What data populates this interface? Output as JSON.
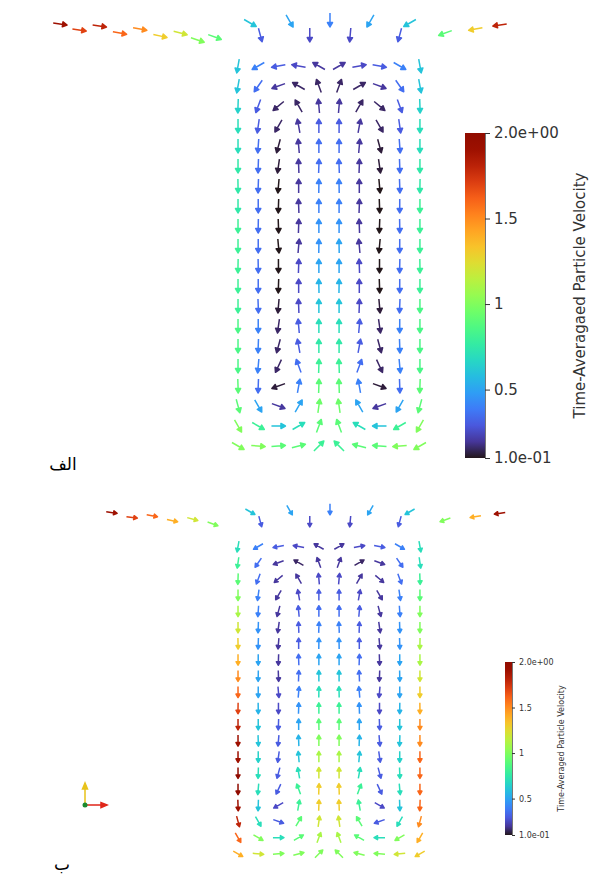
{
  "chart_data": [
    {
      "type": "quiver",
      "label": "الف",
      "tick_labels": false,
      "xlim": [
        -2.8,
        1.9
      ],
      "ylim": [
        0,
        4.6
      ],
      "x": [
        -0.9,
        -0.7,
        -0.5,
        -0.3,
        -0.1,
        0.1,
        0.3,
        0.5,
        0.7,
        0.9
      ],
      "y": [
        4,
        3.8,
        3.6,
        3.4,
        3.2,
        3,
        2.8,
        2.6,
        2.4,
        2.2,
        2,
        1.8,
        1.6,
        1.4,
        1.2,
        1,
        0.8,
        0.6,
        0.4,
        0.2
      ],
      "angle": [
        [
          260,
          210,
          190,
          170,
          150,
          30,
          10,
          350,
          330,
          280
        ],
        [
          260,
          235,
          200,
          150,
          110,
          70,
          30,
          340,
          305,
          280
        ],
        [
          268,
          250,
          220,
          120,
          95,
          85,
          60,
          320,
          290,
          272
        ],
        [
          270,
          262,
          240,
          100,
          90,
          90,
          80,
          300,
          278,
          270
        ],
        [
          270,
          266,
          255,
          95,
          90,
          90,
          85,
          285,
          274,
          270
        ],
        [
          270,
          268,
          262,
          92,
          88,
          92,
          88,
          278,
          272,
          270
        ],
        [
          271,
          268,
          265,
          90,
          89,
          91,
          90,
          275,
          272,
          269
        ],
        [
          270,
          270,
          268,
          92,
          90,
          90,
          88,
          272,
          270,
          270
        ],
        [
          270,
          269,
          272,
          88,
          90,
          90,
          92,
          268,
          271,
          270
        ],
        [
          270,
          270,
          275,
          85,
          89,
          91,
          95,
          265,
          270,
          270
        ],
        [
          269,
          271,
          270,
          88,
          90,
          90,
          92,
          270,
          269,
          271
        ],
        [
          270,
          270,
          268,
          90,
          91,
          89,
          90,
          272,
          270,
          270
        ],
        [
          270,
          272,
          265,
          92,
          90,
          90,
          88,
          275,
          268,
          270
        ],
        [
          270,
          270,
          262,
          95,
          90,
          90,
          85,
          278,
          270,
          270
        ],
        [
          270,
          268,
          255,
          100,
          90,
          90,
          80,
          285,
          272,
          270
        ],
        [
          270,
          265,
          245,
          110,
          88,
          92,
          70,
          295,
          275,
          270
        ],
        [
          272,
          268,
          200,
          80,
          88,
          92,
          100,
          340,
          272,
          268
        ],
        [
          285,
          300,
          340,
          60,
          82,
          98,
          120,
          200,
          240,
          255
        ],
        [
          300,
          330,
          0,
          30,
          70,
          110,
          150,
          180,
          210,
          240
        ],
        [
          330,
          355,
          5,
          15,
          45,
          135,
          165,
          175,
          185,
          210
        ]
      ],
      "speed": [
        [
          0.6,
          0.4,
          0.3,
          0.25,
          0.2,
          0.2,
          0.25,
          0.3,
          0.4,
          0.6
        ],
        [
          0.6,
          0.35,
          0.2,
          0.15,
          0.15,
          0.15,
          0.15,
          0.2,
          0.35,
          0.6
        ],
        [
          0.65,
          0.3,
          0.15,
          0.15,
          0.2,
          0.2,
          0.15,
          0.15,
          0.3,
          0.65
        ],
        [
          0.7,
          0.3,
          0.15,
          0.2,
          0.3,
          0.3,
          0.2,
          0.15,
          0.3,
          0.7
        ],
        [
          0.7,
          0.35,
          0.12,
          0.2,
          0.35,
          0.35,
          0.2,
          0.12,
          0.35,
          0.7
        ],
        [
          0.75,
          0.35,
          0.12,
          0.2,
          0.35,
          0.35,
          0.2,
          0.12,
          0.35,
          0.75
        ],
        [
          0.75,
          0.35,
          0.1,
          0.2,
          0.4,
          0.4,
          0.2,
          0.1,
          0.35,
          0.75
        ],
        [
          0.75,
          0.35,
          0.1,
          0.2,
          0.4,
          0.4,
          0.2,
          0.1,
          0.35,
          0.8
        ],
        [
          0.8,
          0.35,
          0.1,
          0.2,
          0.45,
          0.45,
          0.2,
          0.1,
          0.35,
          0.8
        ],
        [
          0.8,
          0.35,
          0.1,
          0.2,
          0.45,
          0.5,
          0.2,
          0.1,
          0.35,
          0.8
        ],
        [
          0.8,
          0.35,
          0.1,
          0.25,
          0.5,
          0.5,
          0.25,
          0.1,
          0.35,
          0.8
        ],
        [
          0.8,
          0.35,
          0.1,
          0.25,
          0.55,
          0.55,
          0.25,
          0.1,
          0.35,
          0.8
        ],
        [
          0.8,
          0.35,
          0.12,
          0.25,
          0.6,
          0.6,
          0.25,
          0.12,
          0.35,
          0.85
        ],
        [
          0.85,
          0.4,
          0.15,
          0.3,
          0.7,
          0.7,
          0.3,
          0.15,
          0.4,
          0.85
        ],
        [
          0.85,
          0.4,
          0.15,
          0.3,
          0.75,
          0.75,
          0.3,
          0.15,
          0.4,
          0.85
        ],
        [
          0.85,
          0.4,
          0.15,
          0.35,
          0.8,
          0.8,
          0.35,
          0.15,
          0.4,
          0.85
        ],
        [
          0.9,
          0.35,
          0.12,
          0.4,
          0.9,
          0.9,
          0.4,
          0.12,
          0.35,
          0.9
        ],
        [
          0.9,
          0.5,
          0.2,
          0.5,
          0.95,
          0.95,
          0.5,
          0.2,
          0.5,
          0.9
        ],
        [
          1,
          0.8,
          0.6,
          0.7,
          0.9,
          0.9,
          0.7,
          0.6,
          0.8,
          1
        ],
        [
          1,
          1,
          0.9,
          0.9,
          0.8,
          0.8,
          0.9,
          0.9,
          1,
          1
        ]
      ],
      "tray": {
        "x": [
          -2.66,
          -2.47,
          -2.27,
          -2.07,
          -1.87,
          -1.67,
          -1.47,
          -1.3,
          -1.13,
          -0.78,
          -0.39,
          0.01,
          0.41,
          0.8,
          -0.68,
          -0.19,
          0.21,
          0.7,
          1.15,
          1.45,
          1.69
        ],
        "y": [
          4.42,
          4.36,
          4.4,
          4.33,
          4.37,
          4.3,
          4.33,
          4.26,
          4.29,
          4.43,
          4.45,
          4.46,
          4.45,
          4.43,
          4.31,
          4.31,
          4.31,
          4.31,
          4.33,
          4.37,
          4.41
        ],
        "angle": [
          352,
          352,
          352,
          350,
          350,
          348,
          345,
          342,
          340,
          330,
          300,
          270,
          240,
          210,
          285,
          270,
          265,
          255,
          200,
          190,
          188
        ],
        "speed": [
          1.9,
          1.7,
          1.8,
          1.6,
          1.5,
          1.3,
          1.2,
          1.0,
          0.9,
          0.6,
          0.5,
          0.4,
          0.5,
          0.6,
          0.3,
          0.25,
          0.25,
          0.3,
          0.9,
          1.3,
          1.8
        ]
      },
      "colorbar": {
        "title": "Time-Averagaed Particle Velocity",
        "range": [
          0.1,
          2
        ],
        "ticks": [
          {
            "value": 2,
            "label": "2.0e+00"
          },
          1.5,
          1,
          0.5,
          {
            "value": 0.1,
            "label": "1.0e-01"
          }
        ]
      }
    },
    {
      "type": "quiver",
      "label": "ب",
      "tick_labels": false,
      "xlim": [
        -2.8,
        1.9
      ],
      "ylim": [
        0,
        4.6
      ],
      "x": [
        -0.9,
        -0.7,
        -0.5,
        -0.3,
        -0.1,
        0.1,
        0.3,
        0.5,
        0.7,
        0.9
      ],
      "y": [
        4,
        3.8,
        3.6,
        3.4,
        3.2,
        3,
        2.8,
        2.6,
        2.4,
        2.2,
        2,
        1.8,
        1.6,
        1.4,
        1.2,
        1,
        0.8,
        0.6,
        0.4,
        0.2
      ],
      "angle": [
        [
          260,
          210,
          190,
          170,
          150,
          30,
          10,
          350,
          330,
          280
        ],
        [
          262,
          235,
          200,
          150,
          110,
          70,
          30,
          340,
          305,
          278
        ],
        [
          268,
          250,
          220,
          120,
          95,
          85,
          60,
          320,
          290,
          272
        ],
        [
          270,
          262,
          240,
          100,
          90,
          90,
          80,
          300,
          278,
          270
        ],
        [
          270,
          266,
          255,
          95,
          90,
          90,
          85,
          285,
          274,
          270
        ],
        [
          270,
          268,
          262,
          92,
          88,
          92,
          88,
          278,
          272,
          270
        ],
        [
          271,
          268,
          265,
          90,
          89,
          91,
          90,
          275,
          272,
          269
        ],
        [
          270,
          270,
          268,
          92,
          90,
          90,
          88,
          272,
          270,
          270
        ],
        [
          270,
          269,
          272,
          88,
          90,
          90,
          92,
          268,
          271,
          270
        ],
        [
          270,
          270,
          275,
          85,
          89,
          91,
          95,
          265,
          270,
          270
        ],
        [
          269,
          271,
          270,
          88,
          90,
          90,
          92,
          270,
          269,
          271
        ],
        [
          270,
          270,
          268,
          90,
          91,
          89,
          90,
          272,
          270,
          270
        ],
        [
          270,
          272,
          265,
          92,
          90,
          90,
          88,
          275,
          268,
          270
        ],
        [
          270,
          270,
          262,
          95,
          90,
          90,
          85,
          278,
          270,
          270
        ],
        [
          270,
          268,
          255,
          100,
          90,
          90,
          80,
          285,
          272,
          270
        ],
        [
          270,
          265,
          245,
          110,
          88,
          92,
          70,
          295,
          275,
          270
        ],
        [
          272,
          268,
          210,
          80,
          88,
          92,
          100,
          330,
          272,
          268
        ],
        [
          285,
          300,
          340,
          60,
          82,
          98,
          120,
          200,
          240,
          255
        ],
        [
          300,
          330,
          0,
          30,
          70,
          110,
          150,
          180,
          210,
          240
        ],
        [
          330,
          355,
          5,
          15,
          45,
          135,
          165,
          175,
          185,
          210
        ]
      ],
      "speed": [
        [
          0.7,
          0.4,
          0.3,
          0.25,
          0.2,
          0.2,
          0.25,
          0.3,
          0.4,
          0.7
        ],
        [
          0.8,
          0.35,
          0.2,
          0.15,
          0.2,
          0.2,
          0.15,
          0.2,
          0.35,
          0.7
        ],
        [
          0.9,
          0.35,
          0.2,
          0.2,
          0.25,
          0.25,
          0.2,
          0.2,
          0.35,
          0.8
        ],
        [
          1,
          0.4,
          0.2,
          0.25,
          0.3,
          0.3,
          0.25,
          0.2,
          0.4,
          0.9
        ],
        [
          1.1,
          0.4,
          0.2,
          0.3,
          0.35,
          0.35,
          0.3,
          0.2,
          0.4,
          1
        ],
        [
          1.2,
          0.45,
          0.2,
          0.3,
          0.4,
          0.4,
          0.3,
          0.2,
          0.45,
          1
        ],
        [
          1.3,
          0.45,
          0.2,
          0.3,
          0.45,
          0.45,
          0.3,
          0.2,
          0.45,
          1.1
        ],
        [
          1.4,
          0.5,
          0.2,
          0.35,
          0.5,
          0.5,
          0.35,
          0.2,
          0.5,
          1.1
        ],
        [
          1.5,
          0.5,
          0.2,
          0.35,
          0.6,
          0.6,
          0.35,
          0.2,
          0.5,
          1.2
        ],
        [
          1.6,
          0.5,
          0.25,
          0.4,
          0.7,
          0.7,
          0.4,
          0.25,
          0.5,
          1.3
        ],
        [
          1.7,
          0.55,
          0.25,
          0.45,
          0.8,
          0.8,
          0.45,
          0.25,
          0.55,
          1.4
        ],
        [
          1.8,
          0.6,
          0.3,
          0.5,
          0.9,
          0.9,
          0.5,
          0.3,
          0.6,
          1.5
        ],
        [
          1.9,
          0.6,
          0.3,
          0.55,
          1,
          1,
          0.55,
          0.3,
          0.6,
          1.5
        ],
        [
          1.9,
          0.65,
          0.3,
          0.6,
          1.1,
          1.1,
          0.6,
          0.3,
          0.65,
          1.6
        ],
        [
          2,
          0.7,
          0.3,
          0.7,
          1.2,
          1.2,
          0.7,
          0.3,
          0.7,
          1.6
        ],
        [
          2,
          0.7,
          0.3,
          0.8,
          1.3,
          1.3,
          0.8,
          0.3,
          0.7,
          1.6
        ],
        [
          1.9,
          0.6,
          0.25,
          0.8,
          1.3,
          1.3,
          0.8,
          0.25,
          0.6,
          1.6
        ],
        [
          1.8,
          0.7,
          0.3,
          0.9,
          1.2,
          1.2,
          0.9,
          0.3,
          0.7,
          1.5
        ],
        [
          1.6,
          1,
          0.7,
          0.9,
          1.1,
          1.1,
          0.9,
          0.7,
          1,
          1.4
        ],
        [
          1.4,
          1.2,
          1,
          1,
          1,
          1,
          1,
          1,
          1.2,
          1.3
        ]
      ],
      "tray": {
        "x": [
          -2.15,
          -1.95,
          -1.75,
          -1.55,
          -1.35,
          -1.15,
          -0.78,
          -0.39,
          0.01,
          0.41,
          0.8,
          -0.68,
          -0.19,
          0.21,
          0.7,
          1.15,
          1.45,
          1.69
        ],
        "y": [
          4.42,
          4.36,
          4.38,
          4.32,
          4.34,
          4.28,
          4.43,
          4.45,
          4.46,
          4.45,
          4.43,
          4.31,
          4.31,
          4.31,
          4.31,
          4.33,
          4.37,
          4.41
        ],
        "angle": [
          352,
          352,
          350,
          348,
          345,
          340,
          330,
          300,
          270,
          240,
          210,
          285,
          270,
          265,
          255,
          200,
          190,
          188
        ],
        "speed": [
          1.9,
          1.7,
          1.6,
          1.4,
          1.2,
          1.0,
          0.6,
          0.5,
          0.4,
          0.5,
          0.6,
          0.3,
          0.25,
          0.25,
          0.3,
          1.0,
          1.4,
          1.9
        ]
      },
      "colorbar": {
        "title": "Time-Averaged Particle Velocity",
        "range": [
          0.1,
          2
        ],
        "ticks": [
          {
            "value": 2,
            "label": "2.0e+00"
          },
          1.5,
          1,
          0.5,
          {
            "value": 0.1,
            "label": "1.0e-01"
          }
        ]
      }
    }
  ]
}
